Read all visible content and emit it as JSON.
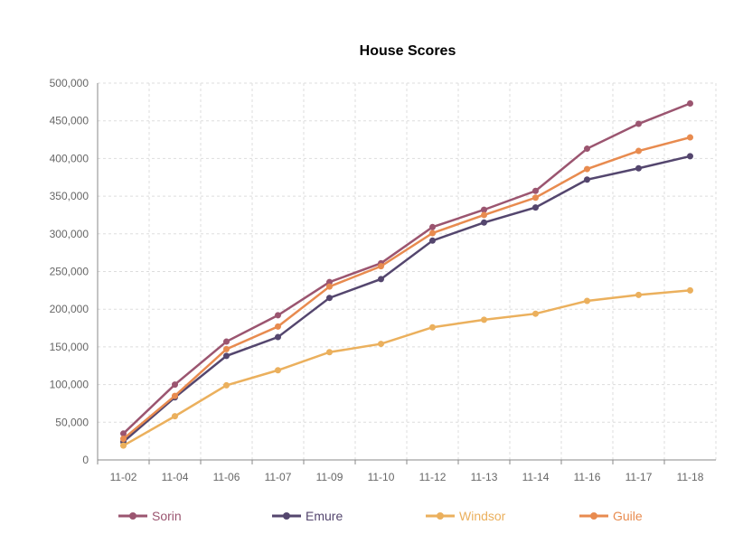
{
  "chart_data": {
    "type": "line",
    "title": "House Scores",
    "xlabel": "",
    "ylabel": "",
    "ylim": [
      0,
      500000
    ],
    "yticks": [
      "0",
      "50,000",
      "100,000",
      "150,000",
      "200,000",
      "250,000",
      "300,000",
      "350,000",
      "400,000",
      "450,000",
      "500,000"
    ],
    "grid": true,
    "legend": "bottom",
    "categories": [
      "11-02",
      "11-04",
      "11-06",
      "11-07",
      "11-09",
      "11-10",
      "11-12",
      "11-13",
      "11-14",
      "11-16",
      "11-17",
      "11-18"
    ],
    "series": [
      {
        "name": "Sorin",
        "color": "#9b5570",
        "values": [
          35000,
          100000,
          157000,
          192000,
          236000,
          261000,
          309000,
          332000,
          357000,
          413000,
          446000,
          473000
        ]
      },
      {
        "name": "Emure",
        "color": "#54466e",
        "values": [
          24000,
          83000,
          138000,
          163000,
          215000,
          240000,
          291000,
          315000,
          335000,
          372000,
          387000,
          403000
        ]
      },
      {
        "name": "Windsor",
        "color": "#ebb05d",
        "values": [
          19000,
          58000,
          99000,
          119000,
          143000,
          154000,
          176000,
          186000,
          194000,
          211000,
          219000,
          225000
        ]
      },
      {
        "name": "Guile",
        "color": "#e88b4f",
        "values": [
          28000,
          85000,
          147000,
          177000,
          230000,
          257000,
          301000,
          325000,
          348000,
          386000,
          410000,
          428000
        ]
      }
    ]
  }
}
